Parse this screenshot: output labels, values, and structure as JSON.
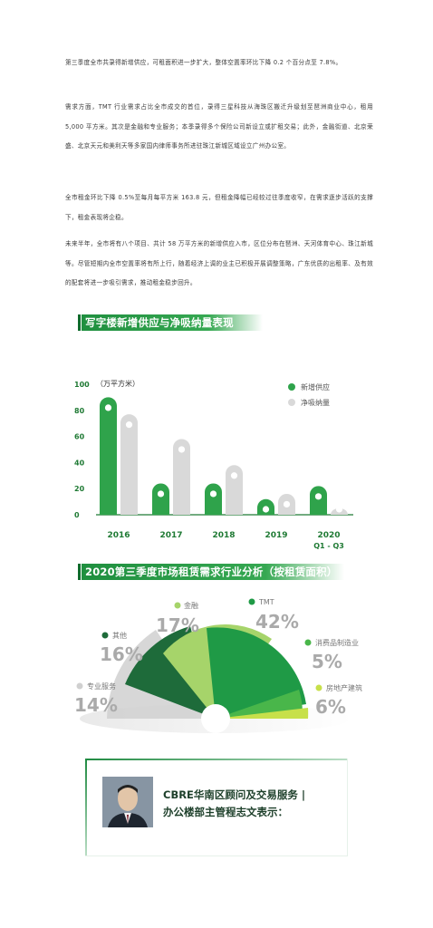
{
  "article": {
    "paragraphs": [
      "第三季度全市共录得新增供应，可租面积进一步扩大，整体空置率环比下降 0.2 个百分点至 7.8%。",
      "需求方面，TMT 行业需求占比全市成交的首位，录得三星科技从海珠区搬迁升级划至琶洲商业中心，租用 5,000 平方米。其次是金融和专业服务；本季录得多个保险公司新设立或扩租交易；此外，金融街道、北京荣盛、北京天元和美利天等多家国内律师事务所进驻珠江新城区域设立广州办公室。",
      "全市租金环比下降 0.5%至每月每平方米 163.8 元，但租金降幅已经较过往季度收窄，在需求逐步活跃的支撑下，租金表现将企稳。",
      "未来半年，全市将有八个项目、共计 58 万平方米的新增供应入市，区位分布在琶洲、天河体育中心、珠江新城等。尽管短期内全市空置率将有所上行，随着经济上调的业主已积极开展调整策略，广东优质的出租率、及有效的配套将进一步吸引需求，推动租金稳步回升。"
    ]
  },
  "chart1": {
    "title": "写字楼新增供应与净吸纳量表现",
    "unit_label": "（万平方米）",
    "legend": [
      "新增供应",
      "净吸纳量"
    ],
    "colors": {
      "supply": "#2fa34b",
      "absorb": "#d9d9d9",
      "axis": "#1f7a34"
    },
    "yticks": [
      "100",
      "80",
      "60",
      "40",
      "20",
      "0"
    ],
    "categories": [
      "2016",
      "2017",
      "2018",
      "2019",
      "2020"
    ],
    "category_sub": [
      "",
      "",
      "",
      "",
      "Q1 - Q3"
    ],
    "series": [
      {
        "name": "新增供应",
        "values": [
          90,
          24,
          24,
          12,
          22
        ]
      },
      {
        "name": "净吸纳量",
        "values": [
          77,
          58,
          38,
          16,
          5
        ]
      }
    ],
    "ylim": [
      0,
      100
    ]
  },
  "chart2": {
    "title": "2020第三季度市场租赁需求行业分析（按租赁面积）",
    "items": [
      {
        "name": "TMT",
        "pct": "42%",
        "color": "#1f9a46"
      },
      {
        "name": "金融",
        "pct": "17%",
        "color": "#a6d46a"
      },
      {
        "name": "其他",
        "pct": "16%",
        "color": "#1e6b3a"
      },
      {
        "name": "专业服务",
        "pct": "14%",
        "color": "#d0d0d0"
      },
      {
        "name": "消费品制造业",
        "pct": "5%",
        "color": "#49b64a"
      },
      {
        "name": "房地产建筑",
        "pct": "6%",
        "color": "#c7e04a"
      }
    ]
  },
  "chart_data": {
    "type": "bar",
    "title": "写字楼新增供应与净吸纳量表现",
    "ylabel": "（万平方米）",
    "categories": [
      "2016",
      "2017",
      "2018",
      "2019",
      "2020 Q1 - Q3"
    ],
    "series": [
      {
        "name": "新增供应",
        "values": [
          90,
          24,
          24,
          12,
          22
        ]
      },
      {
        "name": "净吸纳量",
        "values": [
          77,
          58,
          38,
          16,
          5
        ]
      }
    ],
    "ylim": [
      0,
      100
    ]
  },
  "quote": {
    "line1": "CBRE华南区顾问及交易服务 |",
    "line2": "办公楼部主管程志文表示："
  }
}
